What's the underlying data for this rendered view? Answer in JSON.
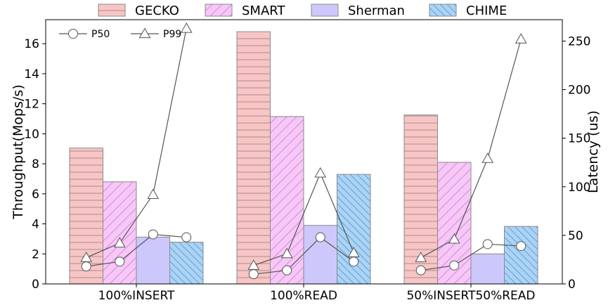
{
  "chart_data": {
    "type": "bar",
    "categories": [
      "100%INSERT",
      "100%READ",
      "50%INSERT50%READ"
    ],
    "series": [
      {
        "name": "GECKO",
        "values": [
          9.05,
          16.8,
          11.25
        ],
        "color": "#f7c5c5",
        "hatch": "horizontal"
      },
      {
        "name": "SMART",
        "values": [
          6.8,
          11.15,
          8.1
        ],
        "color": "#f9c6f7",
        "hatch": "diagonal-forward"
      },
      {
        "name": "Sherman",
        "values": [
          3.12,
          3.9,
          2.0
        ],
        "color": "#cdc8fb",
        "hatch": "none"
      },
      {
        "name": "CHIME",
        "values": [
          2.78,
          7.3,
          3.83
        ],
        "color": "#a9d4f7",
        "hatch": "diagonal-back"
      }
    ],
    "latency_series": [
      {
        "name": "P50",
        "marker": "circle",
        "values": [
          [
            18,
            23,
            51,
            48
          ],
          [
            10,
            14,
            48,
            23
          ],
          [
            14,
            19,
            41,
            39
          ]
        ]
      },
      {
        "name": "P99",
        "marker": "triangle",
        "values": [
          [
            27,
            42,
            92,
            263
          ],
          [
            19,
            31,
            114,
            32
          ],
          [
            27,
            46,
            129,
            252
          ]
        ]
      }
    ],
    "ylabel": "Throughput(Mops/s)",
    "ylabel_right": "Latency (us)",
    "ylim": [
      0,
      17.6
    ],
    "yticks": [
      0,
      2,
      4,
      6,
      8,
      10,
      12,
      14,
      16
    ],
    "ylim_right": [
      0,
      272
    ],
    "yticks_right": [
      0,
      50,
      100,
      150,
      200,
      250
    ],
    "legend_position": "top",
    "line_legend_position": "upper-left",
    "grid": false
  }
}
